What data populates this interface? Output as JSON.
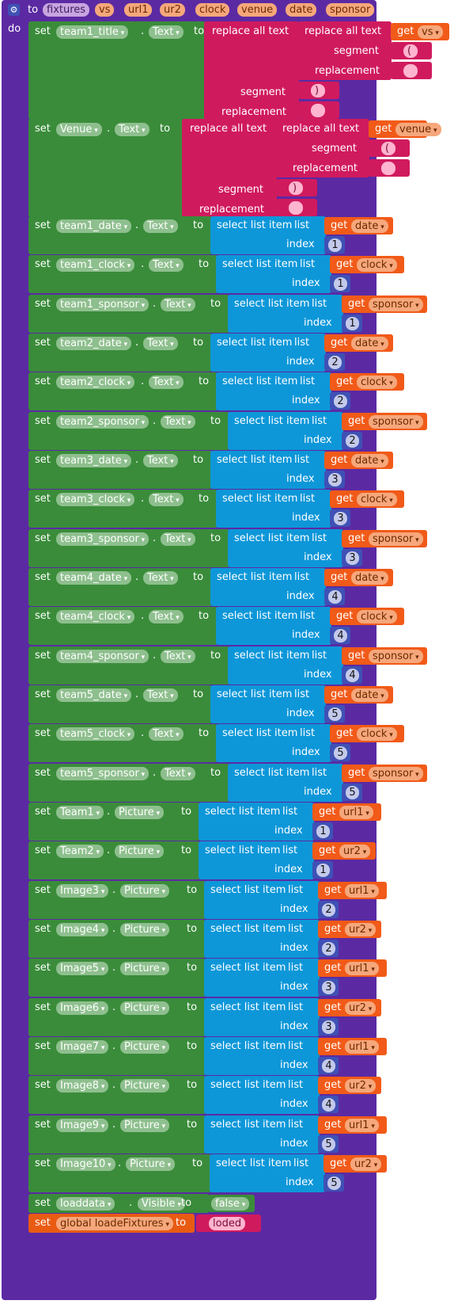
{
  "procedure": {
    "to_label": "to",
    "do_label": "do",
    "name": "fixtures",
    "params": [
      "vs",
      "url1",
      "ur2",
      "clock",
      "venue",
      "date",
      "sponsor"
    ]
  },
  "keywords": {
    "set": "set",
    "to": "to",
    "dot": ".",
    "get": "get",
    "replace_all_text": "replace all text",
    "segment": "segment",
    "replacement": "replacement",
    "select_list_item": "select list item",
    "list": "list",
    "index": "index"
  },
  "replace_blocks": [
    {
      "component": "team1_title",
      "property": "Text",
      "var": "vs",
      "inner_segment": "(",
      "inner_replacement": "",
      "outer_segment": ")",
      "outer_replacement": ""
    },
    {
      "component": "Venue",
      "property": "Text",
      "var": "venue",
      "inner_segment": "(",
      "inner_replacement": "",
      "outer_segment": ")",
      "outer_replacement": ""
    }
  ],
  "select_blocks": [
    {
      "component": "team1_date",
      "property": "Text",
      "var": "date",
      "index": "1"
    },
    {
      "component": "team1_clock",
      "property": "Text",
      "var": "clock",
      "index": "1"
    },
    {
      "component": "team1_sponsor",
      "property": "Text",
      "var": "sponsor",
      "index": "1"
    },
    {
      "component": "team2_date",
      "property": "Text",
      "var": "date",
      "index": "2"
    },
    {
      "component": "team2_clock",
      "property": "Text",
      "var": "clock",
      "index": "2"
    },
    {
      "component": "team2_sponsor",
      "property": "Text",
      "var": "sponsor",
      "index": "2"
    },
    {
      "component": "team3_date",
      "property": "Text",
      "var": "date",
      "index": "3"
    },
    {
      "component": "team3_clock",
      "property": "Text",
      "var": "clock",
      "index": "3"
    },
    {
      "component": "team3_sponsor",
      "property": "Text",
      "var": "sponsor",
      "index": "3"
    },
    {
      "component": "team4_date",
      "property": "Text",
      "var": "date",
      "index": "4"
    },
    {
      "component": "team4_clock",
      "property": "Text",
      "var": "clock",
      "index": "4"
    },
    {
      "component": "team4_sponsor",
      "property": "Text",
      "var": "sponsor",
      "index": "4"
    },
    {
      "component": "team5_date",
      "property": "Text",
      "var": "date",
      "index": "5"
    },
    {
      "component": "team5_clock",
      "property": "Text",
      "var": "clock",
      "index": "5"
    },
    {
      "component": "team5_sponsor",
      "property": "Text",
      "var": "sponsor",
      "index": "5"
    },
    {
      "component": "Team1",
      "property": "Picture",
      "var": "url1",
      "index": "1"
    },
    {
      "component": "Team2",
      "property": "Picture",
      "var": "ur2",
      "index": "1"
    },
    {
      "component": "Image3",
      "property": "Picture",
      "var": "url1",
      "index": "2"
    },
    {
      "component": "Image4",
      "property": "Picture",
      "var": "ur2",
      "index": "2"
    },
    {
      "component": "Image5",
      "property": "Picture",
      "var": "url1",
      "index": "3"
    },
    {
      "component": "Image6",
      "property": "Picture",
      "var": "ur2",
      "index": "3"
    },
    {
      "component": "Image7",
      "property": "Picture",
      "var": "url1",
      "index": "4"
    },
    {
      "component": "Image8",
      "property": "Picture",
      "var": "ur2",
      "index": "4"
    },
    {
      "component": "Image9",
      "property": "Picture",
      "var": "url1",
      "index": "5"
    },
    {
      "component": "Image10",
      "property": "Picture",
      "var": "ur2",
      "index": "5"
    }
  ],
  "visible_block": {
    "component": "loaddata",
    "property": "Visible",
    "value": "false"
  },
  "global_block": {
    "variable": "global loadeFixtures",
    "value": "loded"
  },
  "colors": {
    "procedure": "#5b2aa3",
    "component_set": "#3a8c3a",
    "text_block": "#d01a5e",
    "list_block": "#0d97d9",
    "variable_get": "#f15a18",
    "number": "#3f51b5"
  },
  "icons": {
    "procedure": "gear-icon"
  }
}
